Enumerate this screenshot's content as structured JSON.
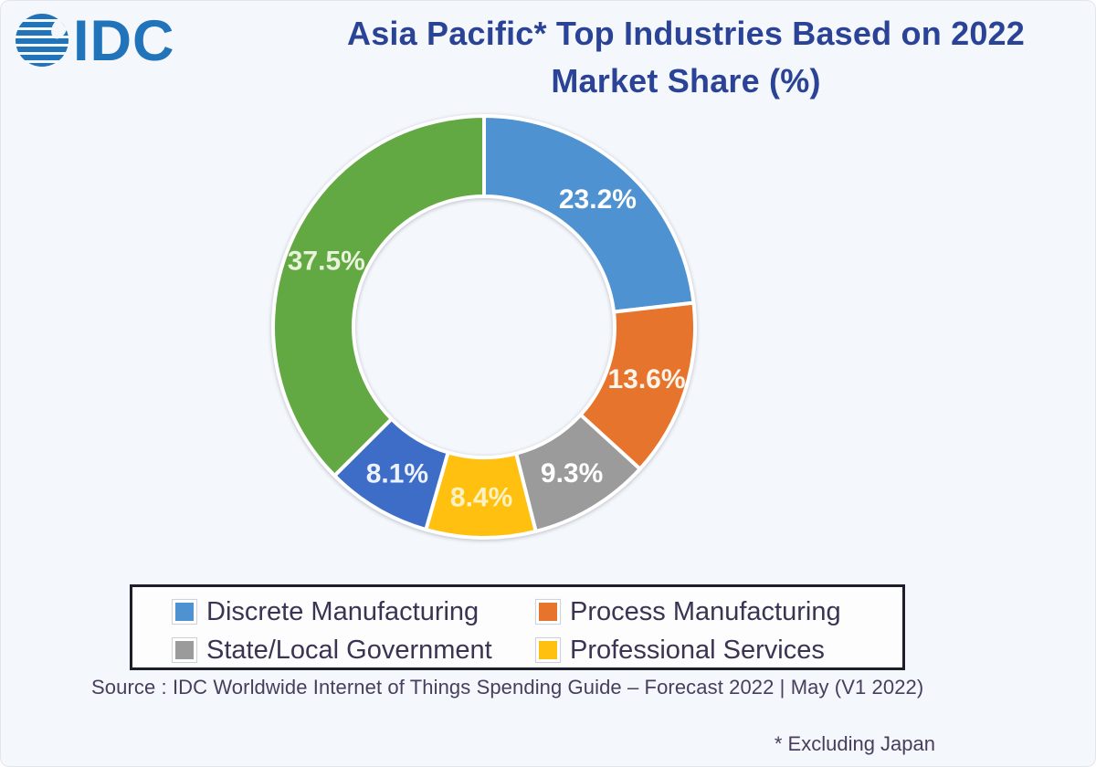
{
  "header": {
    "logo_text": "IDC",
    "logo_color": "#2173BA",
    "title_line1": "Asia Pacific* Top Industries Based on 2022",
    "title_line2": "Market Share (%)",
    "title_color": "#2B4396"
  },
  "chart_data": {
    "type": "pie",
    "subtype": "donut",
    "title": "Asia Pacific* Top Industries Based on 2022 Market Share (%)",
    "start_angle_deg": 0,
    "direction": "clockwise",
    "inner_radius_ratio": 0.62,
    "legend_position": "bottom-box",
    "slices": [
      {
        "name": "Discrete Manufacturing",
        "value": 23.2,
        "label": "23.2%",
        "color": "#4E92D2",
        "label_color": "#FFFFFF"
      },
      {
        "name": "Process Manufacturing",
        "value": 13.6,
        "label": "13.6%",
        "color": "#E6742D",
        "label_color": "#FDF4EA"
      },
      {
        "name": "State/Local Government",
        "value": 9.3,
        "label": "9.3%",
        "color": "#9B9B9B",
        "label_color": "#FFFFFF"
      },
      {
        "name": "Professional Services",
        "value": 8.4,
        "label": "8.4%",
        "color": "#FFC010",
        "label_color": "#FCF1C0"
      },
      {
        "name": "",
        "value": 8.1,
        "label": "8.1%",
        "color": "#3E6DC8",
        "label_color": "#EDF2FC"
      },
      {
        "name": "",
        "value": 37.5,
        "label": "37.5%",
        "color": "#62A843",
        "label_color": "#E9F2DA"
      }
    ]
  },
  "legend": {
    "items": [
      {
        "label": "Discrete Manufacturing",
        "color": "#4E92D2"
      },
      {
        "label": "Process Manufacturing",
        "color": "#E6742D"
      },
      {
        "label": "State/Local Government",
        "color": "#9B9B9B"
      },
      {
        "label": "Professional Services",
        "color": "#FFC010"
      }
    ]
  },
  "source": {
    "text": "Source : IDC Worldwide Internet of Things Spending Guide – Forecast 2022 | May (V1 2022)"
  },
  "footnote": {
    "text": "* Excluding Japan"
  }
}
